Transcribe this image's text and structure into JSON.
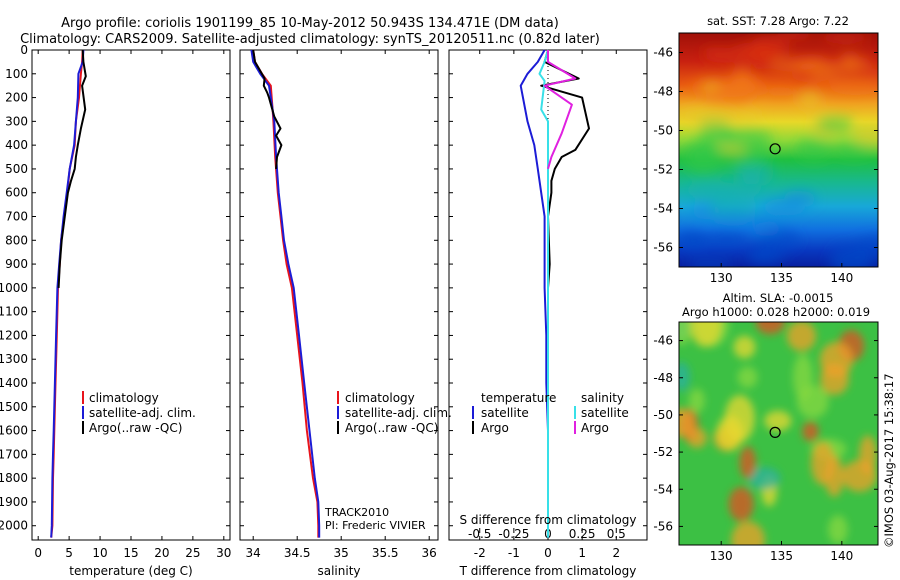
{
  "header": {
    "line1": "Argo profile: coriolis 1901199_85 10-May-2012 50.943S 134.471E (DM data)",
    "line2": "Climatology: CARS2009. Satellite-adjusted climatology: synTS_20120511.nc (0.82d later)"
  },
  "colors": {
    "climatology": "#e8141c",
    "satellite": "#1c1cd6",
    "argo": "#000000",
    "sat_salinity": "#38e0e8",
    "argo_salinity": "#e020e0"
  },
  "chart_data": [
    {
      "type": "line",
      "xlabel": "temperature (deg C)",
      "ylabel": "",
      "xlim": [
        -1,
        31
      ],
      "ylim": [
        2060,
        0
      ],
      "xticks": [
        0,
        5,
        10,
        15,
        20,
        25,
        30
      ],
      "yticks": [
        0,
        100,
        200,
        300,
        400,
        500,
        600,
        700,
        800,
        900,
        1000,
        1100,
        1200,
        1300,
        1400,
        1500,
        1600,
        1700,
        1800,
        1900,
        2000
      ],
      "legend": [
        "climatology",
        "satellite-adj. clim.",
        "Argo(..raw -QC)"
      ],
      "legend_placement": "lower-right",
      "series": [
        {
          "name": "climatology",
          "color": "#e8141c",
          "x": [
            7.2,
            7.1,
            6.9,
            6.6,
            6.1,
            5.9,
            5.1,
            4.7,
            4.2,
            3.7,
            3.5,
            3.2,
            3.0,
            2.8,
            2.6,
            2.5,
            2.4,
            2.3,
            2.1
          ],
          "y": [
            0,
            50,
            100,
            200,
            300,
            400,
            500,
            600,
            700,
            800,
            900,
            1000,
            1200,
            1400,
            1600,
            1700,
            1800,
            2000,
            2050
          ]
        },
        {
          "name": "satellite-adj. clim.",
          "color": "#1c1cd6",
          "x": [
            7.3,
            7.2,
            6.5,
            6.4,
            6.1,
            5.8,
            5.1,
            4.6,
            4.1,
            3.7,
            3.4,
            3.1,
            2.9,
            2.7,
            2.5,
            2.4,
            2.3,
            2.2,
            2.1
          ],
          "y": [
            0,
            50,
            100,
            200,
            300,
            400,
            500,
            600,
            700,
            800,
            900,
            1000,
            1200,
            1400,
            1600,
            1700,
            1800,
            2000,
            2050
          ]
        },
        {
          "name": "Argo(..raw -QC)",
          "color": "#000000",
          "x": [
            7.2,
            7.3,
            7.7,
            7.1,
            7.6,
            6.9,
            6.4,
            6.1,
            5.9,
            5.3,
            4.8,
            4.3,
            3.8,
            3.5,
            3.3
          ],
          "y": [
            0,
            50,
            110,
            150,
            250,
            330,
            400,
            450,
            500,
            550,
            600,
            700,
            800,
            900,
            1000
          ]
        }
      ]
    },
    {
      "type": "line",
      "xlabel": "salinity",
      "ylabel": "",
      "xlim": [
        33.85,
        36.1
      ],
      "ylim": [
        2060,
        0
      ],
      "xticks": [
        34,
        34.5,
        35,
        35.5,
        36
      ],
      "legend": [
        "climatology",
        "satellite-adj. clim.",
        "Argo(..raw -QC)"
      ],
      "legend_placement": "lower-right",
      "annotations": [
        "TRACK2010",
        "PI: Frederic VIVIER"
      ],
      "series": [
        {
          "name": "climatology",
          "color": "#e8141c",
          "x": [
            34.0,
            34.02,
            34.1,
            34.2,
            34.22,
            34.23,
            34.25,
            34.28,
            34.31,
            34.34,
            34.38,
            34.44,
            34.5,
            34.56,
            34.61,
            34.68,
            34.73,
            34.74,
            34.74
          ],
          "y": [
            0,
            50,
            100,
            150,
            250,
            300,
            450,
            600,
            700,
            800,
            900,
            1000,
            1200,
            1400,
            1600,
            1800,
            1900,
            2000,
            2050
          ]
        },
        {
          "name": "satellite-adj. clim.",
          "color": "#1c1cd6",
          "x": [
            33.98,
            34.0,
            34.08,
            34.18,
            34.22,
            34.24,
            34.26,
            34.29,
            34.32,
            34.35,
            34.4,
            34.46,
            34.52,
            34.58,
            34.64,
            34.7,
            34.74,
            34.75,
            34.75
          ],
          "y": [
            0,
            50,
            100,
            150,
            250,
            300,
            450,
            600,
            700,
            800,
            900,
            1000,
            1200,
            1400,
            1600,
            1800,
            1900,
            2000,
            2050
          ]
        },
        {
          "name": "Argo(..raw -QC)",
          "color": "#000000",
          "x": [
            34.0,
            34.02,
            34.13,
            34.12,
            34.16,
            34.18,
            34.24,
            34.31,
            34.26,
            34.32,
            34.27,
            34.26
          ],
          "y": [
            0,
            50,
            120,
            150,
            180,
            200,
            280,
            330,
            360,
            400,
            450,
            500
          ]
        }
      ]
    },
    {
      "type": "line",
      "xlabel": "T difference from climatology",
      "title2": "S difference from climatology",
      "xlim": [
        -2.9,
        2.9
      ],
      "ylim": [
        2060,
        0
      ],
      "xticks": [
        -2,
        -1,
        0,
        1,
        2
      ],
      "secondary_xticks": [
        -0.5,
        -0.25,
        0,
        0.25,
        0.5
      ],
      "legend_groups": [
        {
          "title": "temperature",
          "items": [
            "satellite",
            "Argo"
          ]
        },
        {
          "title": "salinity",
          "items": [
            "satellite",
            "Argo"
          ]
        }
      ],
      "legend_placement": "lower",
      "series": [
        {
          "name": "satellite",
          "color": "#1c1cd6",
          "x": [
            -0.1,
            -0.3,
            -0.6,
            -0.8,
            -0.6,
            -0.4,
            -0.3,
            -0.2,
            -0.1,
            -0.1,
            -0.1,
            -0.05,
            -0.05,
            0.0,
            0.0,
            0.0
          ],
          "y": [
            0,
            50,
            100,
            150,
            300,
            400,
            500,
            600,
            700,
            800,
            1000,
            1200,
            1400,
            1600,
            1800,
            2050
          ]
        },
        {
          "name": "Argo",
          "color": "#000000",
          "x": [
            0.0,
            -0.1,
            0.9,
            -0.2,
            1.0,
            1.2,
            0.8,
            0.4,
            0.2,
            0.1,
            0.1,
            0.0,
            0.05,
            0.0
          ],
          "y": [
            0,
            50,
            120,
            150,
            200,
            330,
            420,
            450,
            500,
            550,
            600,
            700,
            900,
            1000
          ]
        },
        {
          "name": "satellite",
          "color": "#38e0e8",
          "x": [
            0.0,
            -0.1,
            -0.25,
            -0.1,
            -0.2,
            0.0,
            0.0,
            0.0,
            0.0,
            0.0,
            0.0
          ],
          "y": [
            0,
            50,
            100,
            130,
            250,
            300,
            500,
            700,
            1000,
            1500,
            2050
          ]
        },
        {
          "name": "Argo",
          "color": "#e020e0",
          "x": [
            0.0,
            0.0,
            0.8,
            -0.1,
            0.7,
            0.4,
            0.1,
            0.0
          ],
          "y": [
            0,
            50,
            120,
            150,
            230,
            350,
            450,
            500
          ]
        }
      ]
    },
    {
      "type": "heatmap",
      "title": "sat. SST: 7.28 Argo: 7.22",
      "xlim": [
        126.5,
        143
      ],
      "ylim": [
        -57,
        -45
      ],
      "xticks": [
        130,
        135,
        140
      ],
      "yticks": [
        -46,
        -48,
        -50,
        -52,
        -54,
        -56
      ],
      "marker": {
        "lon": 134.47,
        "lat": -50.94
      }
    },
    {
      "type": "heatmap",
      "title": "Altim. SLA: -0.0015",
      "subtitle": "Argo h1000: 0.028 h2000: 0.019",
      "xlim": [
        126.5,
        143
      ],
      "ylim": [
        -57,
        -45
      ],
      "xticks": [
        130,
        135,
        140
      ],
      "yticks": [
        -46,
        -48,
        -50,
        -52,
        -54,
        -56
      ],
      "marker": {
        "lon": 134.47,
        "lat": -50.94
      }
    }
  ],
  "credit": "©IMOS 03-Aug-2017 15:38:17"
}
